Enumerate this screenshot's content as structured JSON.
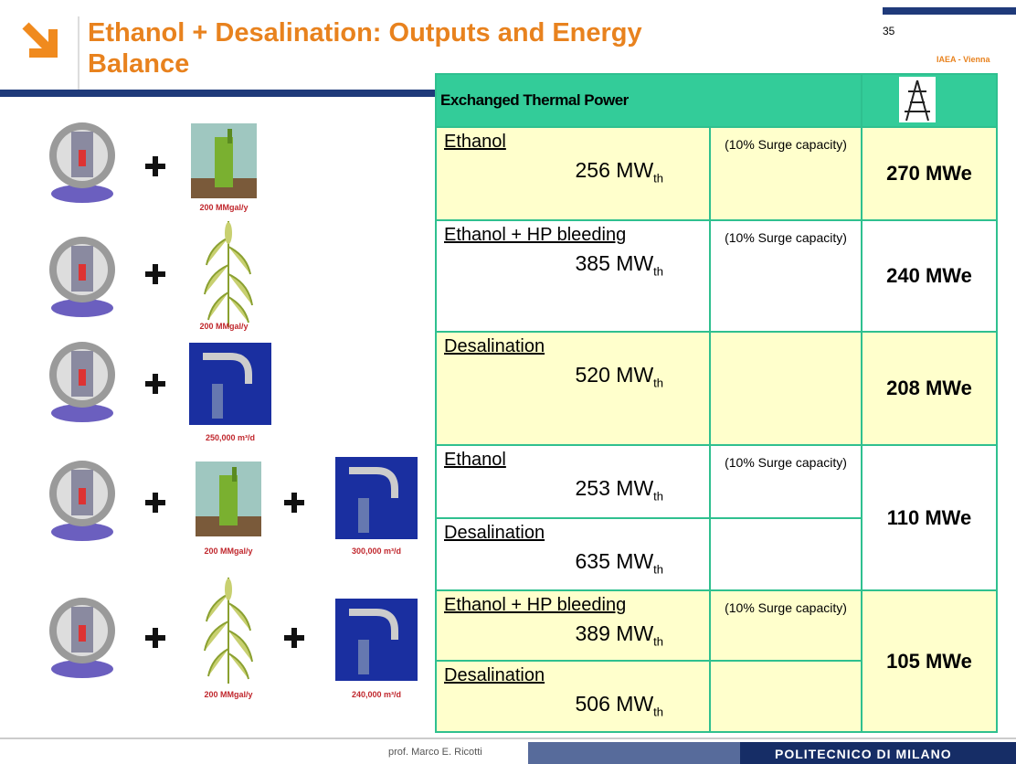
{
  "header": {
    "title": "Ethanol + Desalination: Outputs and Energy Balance",
    "page_number": "35",
    "event": "IAEA - Vienna"
  },
  "combinations": [
    {
      "labels": [
        "200 MMgal/y"
      ]
    },
    {
      "labels": [
        "200 MMgal/y"
      ]
    },
    {
      "labels": [
        "250,000 m³/d"
      ]
    },
    {
      "labels": [
        "200 MMgal/y",
        "300,000 m³/d"
      ]
    },
    {
      "labels": [
        "200 MMgal/y",
        "240,000 m³/d"
      ]
    }
  ],
  "table": {
    "header": "Exchanged Thermal Power",
    "rows": [
      {
        "parts": [
          {
            "process": "Ethanol",
            "power": "256 MW",
            "power_sub": "th",
            "note": "(10% Surge capacity)"
          }
        ],
        "output": "270 MWe"
      },
      {
        "parts": [
          {
            "process": "Ethanol + HP bleeding",
            "power": "385 MW",
            "power_sub": "th",
            "note": "(10% Surge capacity)"
          }
        ],
        "output": "240 MWe"
      },
      {
        "parts": [
          {
            "process": "Desalination",
            "power": "520 MW",
            "power_sub": "th"
          }
        ],
        "output": "208 MWe"
      },
      {
        "parts": [
          {
            "process": "Ethanol",
            "power": "253 MW",
            "power_sub": "th",
            "note": "(10% Surge capacity)"
          },
          {
            "process": "Desalination",
            "power": "635 MW",
            "power_sub": "th"
          }
        ],
        "output": "110 MWe"
      },
      {
        "parts": [
          {
            "process": "Ethanol + HP bleeding",
            "power": "389 MW",
            "power_sub": "th",
            "note": "(10% Surge capacity)"
          },
          {
            "process": "Desalination",
            "power": "506 MW",
            "power_sub": "th"
          }
        ],
        "output": "105 MWe"
      }
    ]
  },
  "footer": {
    "author": "prof. Marco E. Ricotti",
    "institution": "POLITECNICO DI MILANO"
  }
}
